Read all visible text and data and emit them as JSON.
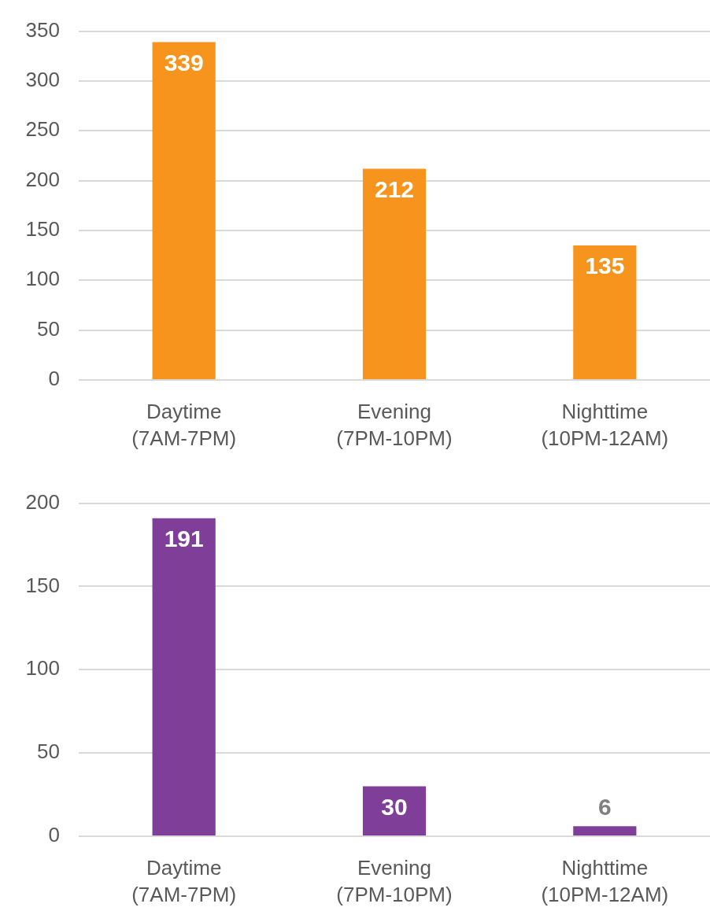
{
  "chart_data": [
    {
      "type": "bar",
      "categories": [
        "Daytime (7AM-7PM)",
        "Evening (7PM-10PM)",
        "Nighttime (10PM-12AM)"
      ],
      "values": [
        339,
        212,
        135
      ],
      "color": "#f7941d",
      "ylim": [
        0,
        350
      ],
      "yticks": [
        0,
        50,
        100,
        150,
        200,
        250,
        300,
        350
      ],
      "grid": "y",
      "data_labels": true
    },
    {
      "type": "bar",
      "categories": [
        "Daytime (7AM-7PM)",
        "Evening (7PM-10PM)",
        "Nighttime (10PM-12AM)"
      ],
      "values": [
        191,
        30,
        6
      ],
      "color": "#7f3f98",
      "ylim": [
        0,
        200
      ],
      "yticks": [
        0,
        50,
        100,
        150,
        200
      ],
      "grid": "y",
      "data_labels": true
    }
  ]
}
